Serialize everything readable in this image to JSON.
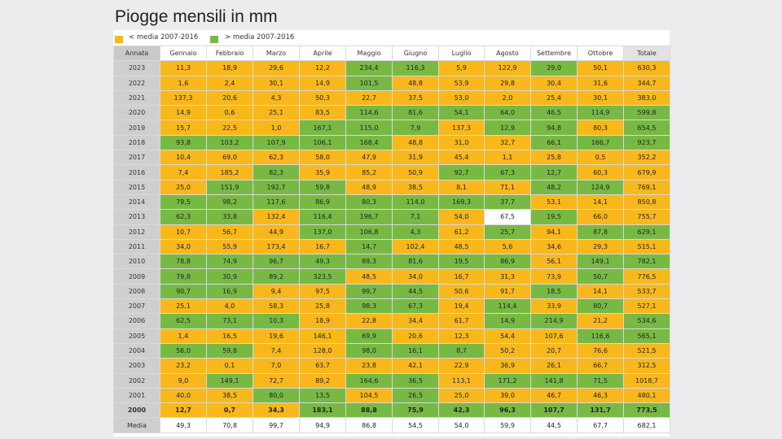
{
  "title": "Piogge mensili in mm",
  "legend": [
    {
      "label": "< media 2007-2016",
      "color": "#f8b81c"
    },
    {
      "label": "> media 2007-2016",
      "color": "#78b944"
    }
  ],
  "colors": {
    "below": "#f8b81c",
    "above": "#78b944",
    "neutral": "#ffffff",
    "year_col": "#cfcfcf",
    "header_year": "#c9c9c9",
    "highlight_line": "#d98a1e"
  },
  "headers": [
    "Annata",
    "Gennaio",
    "Febbraio",
    "Marzo",
    "Aprile",
    "Maggio",
    "Giugno",
    "Luglio",
    "Agosto",
    "Settembre",
    "Ottobre",
    "Totale"
  ],
  "rows": [
    {
      "year": "2023",
      "values": [
        "11,3",
        "18,9",
        "29,6",
        "12,2",
        "234,4",
        "116,3",
        "5,9",
        "122,9",
        "29,0",
        "50,1",
        "630,3"
      ],
      "colors": "ooooggoogooo"
    },
    {
      "year": "2022",
      "values": [
        "1,6",
        "2,4",
        "30,1",
        "14,9",
        "101,5",
        "48,8",
        "53,9",
        "29,8",
        "30,4",
        "31,6",
        "344,7"
      ],
      "colors": "oooogooooooo"
    },
    {
      "year": "2021",
      "values": [
        "137,3",
        "20,6",
        "4,3",
        "50,3",
        "22,7",
        "37,5",
        "53,0",
        "2,0",
        "25,4",
        "30,1",
        "383,0"
      ],
      "colors": "oooooooooooo"
    },
    {
      "year": "2020",
      "values": [
        "14,9",
        "0,6",
        "25,1",
        "83,5",
        "114,6",
        "81,6",
        "54,1",
        "64,0",
        "46,5",
        "114,9",
        "599,8"
      ],
      "colors": "oooogggggggg"
    },
    {
      "year": "2019",
      "values": [
        "15,7",
        "22,5",
        "1,0",
        "167,1",
        "115,0",
        "7,9",
        "137,3",
        "12,9",
        "94,8",
        "80,3",
        "654,5"
      ],
      "colors": "ooogggoggogg"
    },
    {
      "year": "2018",
      "values": [
        "93,8",
        "103,2",
        "107,9",
        "106,1",
        "168,4",
        "48,8",
        "31,0",
        "32,7",
        "66,1",
        "166,7",
        "923,7"
      ],
      "colors": "gggggooogggg"
    },
    {
      "year": "2017",
      "values": [
        "10,4",
        "69,0",
        "62,3",
        "58,0",
        "47,9",
        "31,9",
        "45,4",
        "1,1",
        "25,8",
        "0,5",
        "352,2"
      ],
      "colors": "oooooooooooo"
    },
    {
      "year": "2016",
      "values": [
        "7,4",
        "185,2",
        "82,3",
        "35,9",
        "85,2",
        "50,9",
        "92,7",
        "67,3",
        "12,7",
        "60,3",
        "679,9"
      ],
      "colors": "oogooogggooo"
    },
    {
      "year": "2015",
      "values": [
        "25,0",
        "151,9",
        "192,7",
        "59,8",
        "48,9",
        "38,5",
        "8,1",
        "71,1",
        "48,2",
        "124,9",
        "769,1"
      ],
      "colors": "ogggooooggog"
    },
    {
      "year": "2014",
      "values": [
        "79,5",
        "98,2",
        "117,6",
        "86,9",
        "80,3",
        "114,0",
        "169,3",
        "37,7",
        "53,1",
        "14,1",
        "850,8"
      ],
      "colors": "ggggggggooog"
    },
    {
      "year": "2013",
      "values": [
        "62,3",
        "33,8",
        "132,4",
        "116,4",
        "196,7",
        "7,1",
        "54,0",
        "67,5",
        "19,5",
        "66,0",
        "755,7"
      ],
      "colors": "ggogggowgoog"
    },
    {
      "year": "2012",
      "values": [
        "10,7",
        "56,7",
        "44,9",
        "137,0",
        "106,8",
        "4,3",
        "61,2",
        "25,7",
        "94,1",
        "87,8",
        "629,1"
      ],
      "colors": "ooogggogoggo"
    },
    {
      "year": "2011",
      "values": [
        "34,0",
        "55,9",
        "173,4",
        "16,7",
        "14,7",
        "102,4",
        "48,5",
        "5,6",
        "34,6",
        "29,3",
        "515,1"
      ],
      "colors": "oooogooooooo"
    },
    {
      "year": "2010",
      "values": [
        "78,8",
        "74,9",
        "96,7",
        "49,3",
        "89,3",
        "81,6",
        "19,5",
        "86,9",
        "56,1",
        "149,1",
        "782,1"
      ],
      "colors": "ggggggggogggg"
    },
    {
      "year": "2009",
      "values": [
        "79,8",
        "30,9",
        "89,2",
        "323,5",
        "48,5",
        "34,0",
        "16,7",
        "31,3",
        "73,9",
        "50,7",
        "776,5"
      ],
      "colors": "ggggooooogog"
    },
    {
      "year": "2008",
      "values": [
        "90,7",
        "16,9",
        "9,4",
        "97,5",
        "99,7",
        "44,5",
        "50,6",
        "91,7",
        "18,5",
        "14,1",
        "533,7"
      ],
      "colors": "ggooggoogooo"
    },
    {
      "year": "2007",
      "values": [
        "25,1",
        "4,0",
        "58,3",
        "25,8",
        "98,3",
        "67,3",
        "19,4",
        "114,4",
        "33,9",
        "80,7",
        "527,1"
      ],
      "colors": "ooooggogogoo"
    },
    {
      "year": "2006",
      "values": [
        "62,5",
        "73,1",
        "10,3",
        "18,9",
        "22,8",
        "34,4",
        "61,7",
        "14,9",
        "214,9",
        "21,2",
        "534,6"
      ],
      "colors": "gggooooggogoo"
    },
    {
      "year": "2005",
      "values": [
        "1,4",
        "16,5",
        "19,6",
        "146,1",
        "69,9",
        "20,6",
        "12,3",
        "54,4",
        "107,6",
        "116,6",
        "565,1"
      ],
      "colors": "oooogoooogggo"
    },
    {
      "year": "2004",
      "values": [
        "56,0",
        "59,8",
        "7,4",
        "128,0",
        "98,0",
        "16,1",
        "8,7",
        "50,2",
        "20,7",
        "76,6",
        "521,5"
      ],
      "colors": "ggoogggoooogo"
    },
    {
      "year": "2003",
      "values": [
        "23,2",
        "0,1",
        "7,0",
        "63,7",
        "23,8",
        "42,1",
        "22,9",
        "36,9",
        "26,1",
        "66,7",
        "312,5"
      ],
      "colors": "oooooooooooo"
    },
    {
      "year": "2002",
      "values": [
        "9,0",
        "149,1",
        "72,7",
        "89,2",
        "164,6",
        "36,5",
        "113,1",
        "171,2",
        "141,8",
        "71,5",
        "1018,7"
      ],
      "colors": "ogooggogggogg"
    },
    {
      "year": "2001",
      "values": [
        "40,0",
        "38,5",
        "80,0",
        "13,5",
        "104,5",
        "26,5",
        "25,0",
        "39,0",
        "46,7",
        "46,3",
        "480,1"
      ],
      "colors": "ooggogooooogo"
    },
    {
      "year": "2000",
      "values": [
        "12,7",
        "0,7",
        "34,3",
        "183,1",
        "88,8",
        "75,9",
        "42,3",
        "96,3",
        "107,7",
        "131,7",
        "773,5"
      ],
      "colors": "ooogggggggggg",
      "highlight": true
    },
    {
      "year": "Media",
      "values": [
        "49,3",
        "70,8",
        "99,7",
        "94,9",
        "86,8",
        "54,5",
        "54,0",
        "59,9",
        "44,5",
        "67,7",
        "682,1"
      ],
      "colors": "wwwwwwwwwwww",
      "media": true
    }
  ]
}
